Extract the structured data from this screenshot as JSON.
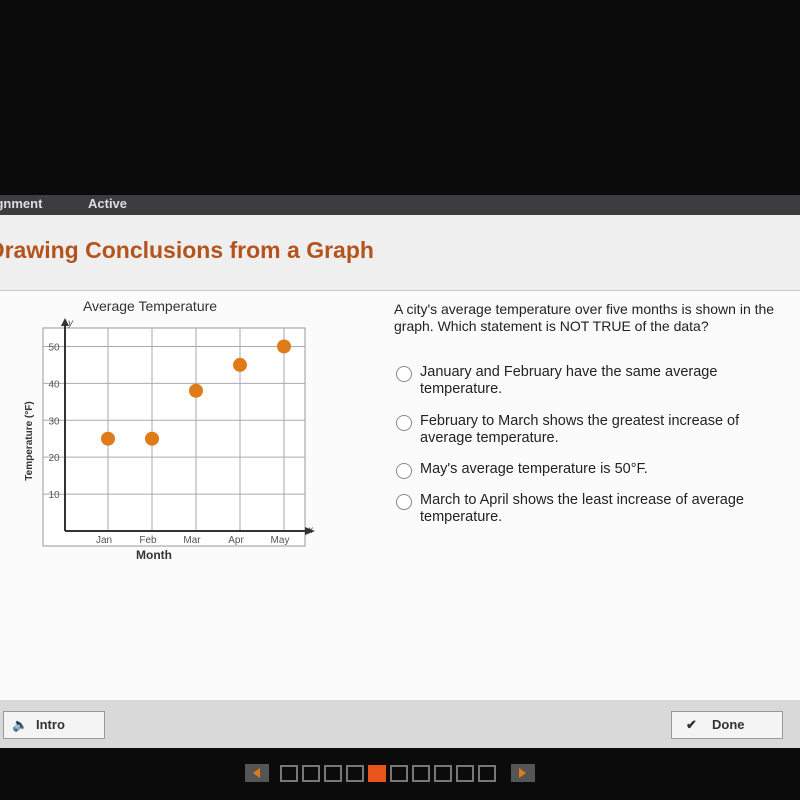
{
  "header": {
    "tab": "Assignment",
    "status": "Active",
    "title": "Drawing Conclusions from a Graph"
  },
  "chart_data": {
    "type": "scatter",
    "title": "Average Temperature",
    "x_label": "Month",
    "y_label": "Temperature (°F)",
    "x_axis_name": "x",
    "y_axis_name": "y",
    "categories": [
      "Jan",
      "Feb",
      "Mar",
      "Apr",
      "May"
    ],
    "values": [
      25,
      25,
      38,
      45,
      50
    ],
    "color": "#e07b1a",
    "ylim": [
      0,
      55
    ],
    "yticks": [
      10,
      20,
      30,
      40,
      50
    ],
    "grid": true
  },
  "question": {
    "prompt": "A city's average temperature over five months is shown in the graph. Which statement is NOT TRUE of the data?",
    "options": [
      "January and February have the same average temperature.",
      "February to March shows the greatest increase of average temperature.",
      "May's average temperature is 50°F.",
      "March to April shows the least increase of average temperature."
    ]
  },
  "footer": {
    "intro": "Intro",
    "done": "Done"
  }
}
